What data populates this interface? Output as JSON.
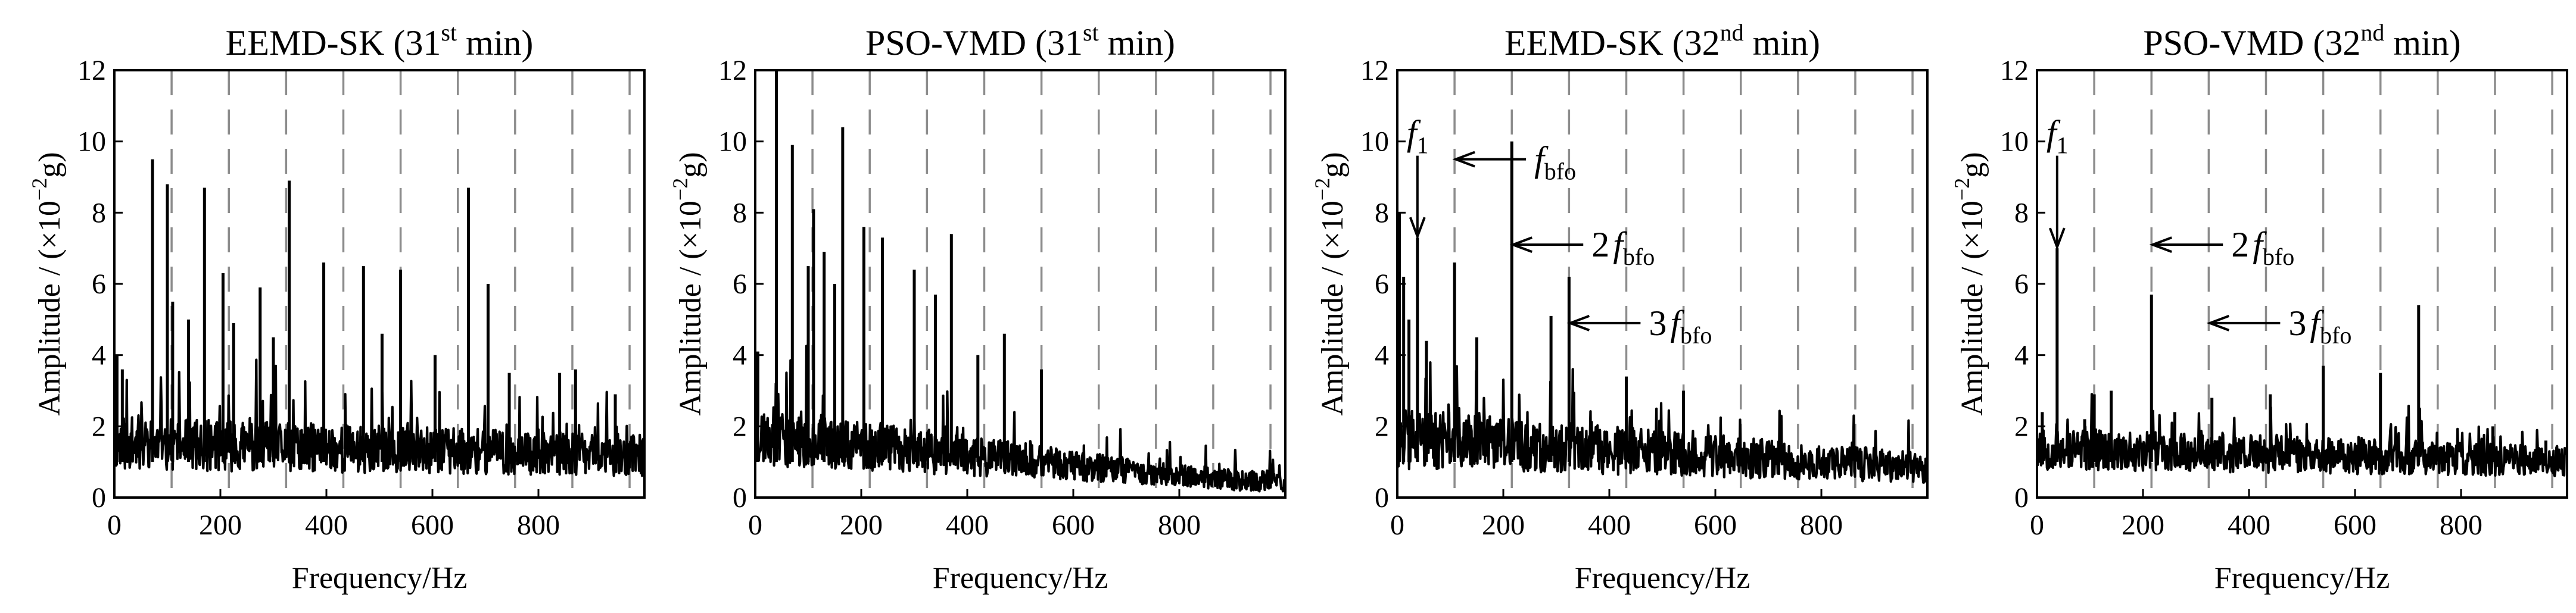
{
  "figure": {
    "colors": {
      "line": "#000000",
      "marker": "#8c8c8c",
      "background": "#ffffff"
    }
  },
  "chart_data": [
    {
      "type": "line",
      "title": "EEMD-SK (31st min)",
      "title_main": "EEMD-SK (31",
      "title_sup": "st",
      "title_end": " min)",
      "xlabel": "Frequency/Hz",
      "ylabel": "Amplitude / (×10⁻²g)",
      "ylabel_main": "Amplitude / (×10",
      "ylabel_sup": "−2",
      "ylabel_end": "g)",
      "xlim": [
        0,
        1000
      ],
      "ylim": [
        0,
        12
      ],
      "xticks": [
        0,
        200,
        400,
        600,
        800
      ],
      "xtick_labels": [
        "0",
        "200",
        "400",
        "600",
        "800"
      ],
      "yticks": [
        0,
        2,
        4,
        6,
        8,
        10,
        12
      ],
      "ytick_labels": [
        "0",
        "2",
        "4",
        "6",
        "8",
        "10",
        "12"
      ],
      "marker_lines_hz": [
        108,
        216,
        324,
        432,
        540,
        648,
        756,
        864,
        972
      ],
      "baseline": {
        "level": 1.3,
        "spread": 0.75,
        "decay": 0.5,
        "seed": 11
      },
      "peaks": [
        {
          "x": 5,
          "y": 4.0
        },
        {
          "x": 15,
          "y": 3.6
        },
        {
          "x": 72,
          "y": 9.5
        },
        {
          "x": 100,
          "y": 8.8
        },
        {
          "x": 110,
          "y": 5.5
        },
        {
          "x": 140,
          "y": 5.0
        },
        {
          "x": 170,
          "y": 8.7
        },
        {
          "x": 205,
          "y": 6.3
        },
        {
          "x": 225,
          "y": 4.9
        },
        {
          "x": 275,
          "y": 5.9
        },
        {
          "x": 300,
          "y": 4.5
        },
        {
          "x": 330,
          "y": 8.9
        },
        {
          "x": 395,
          "y": 6.6
        },
        {
          "x": 470,
          "y": 6.5
        },
        {
          "x": 505,
          "y": 4.6
        },
        {
          "x": 540,
          "y": 6.4
        },
        {
          "x": 605,
          "y": 4.0
        },
        {
          "x": 668,
          "y": 8.7
        },
        {
          "x": 705,
          "y": 6.0
        },
        {
          "x": 745,
          "y": 3.5
        },
        {
          "x": 840,
          "y": 3.5
        },
        {
          "x": 870,
          "y": 3.6
        },
        {
          "x": 945,
          "y": 2.9
        }
      ],
      "annotations": []
    },
    {
      "type": "line",
      "title": "PSO-VMD (31st min)",
      "title_main": "PSO-VMD (31",
      "title_sup": "st",
      "title_end": " min)",
      "xlabel": "Frequency/Hz",
      "ylabel": "Amplitude / (×10⁻²g)",
      "ylabel_main": "Amplitude / (×10",
      "ylabel_sup": "−2",
      "ylabel_end": "g)",
      "xlim": [
        0,
        1000
      ],
      "ylim": [
        0,
        12
      ],
      "xticks": [
        0,
        200,
        400,
        600,
        800
      ],
      "xtick_labels": [
        "0",
        "200",
        "400",
        "600",
        "800"
      ],
      "yticks": [
        0,
        2,
        4,
        6,
        8,
        10,
        12
      ],
      "ytick_labels": [
        "0",
        "2",
        "4",
        "6",
        "8",
        "10",
        "12"
      ],
      "marker_lines_hz": [
        108,
        216,
        324,
        432,
        540,
        648,
        756,
        864,
        972
      ],
      "baseline": {
        "level": 1.5,
        "spread": 0.85,
        "decay": 1.8,
        "seed": 23
      },
      "peaks": [
        {
          "x": 5,
          "y": 4.1
        },
        {
          "x": 40,
          "y": 12.0
        },
        {
          "x": 70,
          "y": 9.9
        },
        {
          "x": 100,
          "y": 6.5
        },
        {
          "x": 110,
          "y": 8.1
        },
        {
          "x": 130,
          "y": 6.9
        },
        {
          "x": 150,
          "y": 6.0
        },
        {
          "x": 165,
          "y": 10.4
        },
        {
          "x": 205,
          "y": 7.6
        },
        {
          "x": 240,
          "y": 7.3
        },
        {
          "x": 300,
          "y": 6.4
        },
        {
          "x": 340,
          "y": 5.7
        },
        {
          "x": 370,
          "y": 7.4
        },
        {
          "x": 420,
          "y": 4.0
        },
        {
          "x": 470,
          "y": 4.6
        },
        {
          "x": 540,
          "y": 3.6
        },
        {
          "x": 610,
          "y": 1.2
        },
        {
          "x": 700,
          "y": 1.0
        }
      ],
      "annotations": []
    },
    {
      "type": "line",
      "title": "EEMD-SK (32nd min)",
      "title_main": "EEMD-SK (32",
      "title_sup": "nd",
      "title_end": " min)",
      "xlabel": "Frequency/Hz",
      "ylabel": "Amplitude / (×10⁻²g)",
      "ylabel_main": "Amplitude / (×10",
      "ylabel_sup": "−2",
      "ylabel_end": "g)",
      "xlim": [
        0,
        1000
      ],
      "ylim": [
        0,
        12
      ],
      "xticks": [
        0,
        200,
        400,
        600,
        800
      ],
      "xtick_labels": [
        "0",
        "200",
        "400",
        "600",
        "800"
      ],
      "yticks": [
        0,
        2,
        4,
        6,
        8,
        10,
        12
      ],
      "ytick_labels": [
        "0",
        "2",
        "4",
        "6",
        "8",
        "10",
        "12"
      ],
      "marker_lines_hz": [
        108,
        216,
        324,
        432,
        540,
        648,
        756,
        864,
        972
      ],
      "baseline": {
        "level": 1.4,
        "spread": 0.85,
        "decay": 1.1,
        "seed": 37
      },
      "peaks": [
        {
          "x": 4,
          "y": 8.0
        },
        {
          "x": 12,
          "y": 6.2
        },
        {
          "x": 22,
          "y": 5.0
        },
        {
          "x": 38,
          "y": 7.3
        },
        {
          "x": 55,
          "y": 4.4
        },
        {
          "x": 108,
          "y": 6.6
        },
        {
          "x": 150,
          "y": 4.5
        },
        {
          "x": 216,
          "y": 10.0
        },
        {
          "x": 290,
          "y": 5.1
        },
        {
          "x": 324,
          "y": 6.2
        },
        {
          "x": 432,
          "y": 3.4
        },
        {
          "x": 540,
          "y": 3.0
        },
        {
          "x": 610,
          "y": 1.6
        }
      ],
      "annotations": [
        {
          "id": "f1",
          "label": "f",
          "sub": "1",
          "target_x": 38,
          "target_y": 7.3
        },
        {
          "id": "fbfo",
          "label": "f",
          "sub": "bfo",
          "target_x": 108,
          "target_y": 9.5
        },
        {
          "id": "2fbfo",
          "label": "2f",
          "num": "2",
          "sub": "bfo",
          "target_x": 216,
          "target_y": 7.1
        },
        {
          "id": "3fbfo",
          "label": "3f",
          "num": "3",
          "sub": "bfo",
          "target_x": 324,
          "target_y": 4.9
        }
      ]
    },
    {
      "type": "line",
      "title": "PSO-VMD (32nd min)",
      "title_main": "PSO-VMD (32",
      "title_sup": "nd",
      "title_end": " min)",
      "xlabel": "Frequency/Hz",
      "ylabel": "Amplitude / (×10⁻²g)",
      "ylabel_main": "Amplitude / (×10",
      "ylabel_sup": "−2",
      "ylabel_end": "g)",
      "xlim": [
        0,
        1000
      ],
      "ylim": [
        0,
        12
      ],
      "xticks": [
        0,
        200,
        400,
        600,
        800
      ],
      "xtick_labels": [
        "0",
        "200",
        "400",
        "600",
        "800"
      ],
      "yticks": [
        0,
        2,
        4,
        6,
        8,
        10,
        12
      ],
      "ytick_labels": [
        "0",
        "2",
        "4",
        "6",
        "8",
        "10",
        "12"
      ],
      "marker_lines_hz": [
        108,
        216,
        324,
        432,
        540,
        648,
        756,
        864,
        972
      ],
      "baseline": {
        "level": 1.2,
        "spread": 0.6,
        "decay": 0.6,
        "seed": 53
      },
      "peaks": [
        {
          "x": 10,
          "y": 2.4
        },
        {
          "x": 38,
          "y": 7.0
        },
        {
          "x": 90,
          "y": 2.2
        },
        {
          "x": 108,
          "y": 2.9
        },
        {
          "x": 140,
          "y": 3.0
        },
        {
          "x": 216,
          "y": 5.7
        },
        {
          "x": 260,
          "y": 2.4
        },
        {
          "x": 330,
          "y": 2.8
        },
        {
          "x": 440,
          "y": 2.9
        },
        {
          "x": 540,
          "y": 3.7
        },
        {
          "x": 648,
          "y": 3.5
        },
        {
          "x": 720,
          "y": 5.4
        },
        {
          "x": 860,
          "y": 2.0
        },
        {
          "x": 960,
          "y": 1.6
        }
      ],
      "annotations": [
        {
          "id": "f1",
          "label": "f",
          "sub": "1",
          "target_x": 38,
          "target_y": 7.0
        },
        {
          "id": "2fbfo",
          "label": "2f",
          "num": "2",
          "sub": "bfo",
          "target_x": 216,
          "target_y": 7.1
        },
        {
          "id": "3fbfo",
          "label": "3f",
          "num": "3",
          "sub": "bfo",
          "target_x": 324,
          "target_y": 4.9
        }
      ]
    }
  ]
}
